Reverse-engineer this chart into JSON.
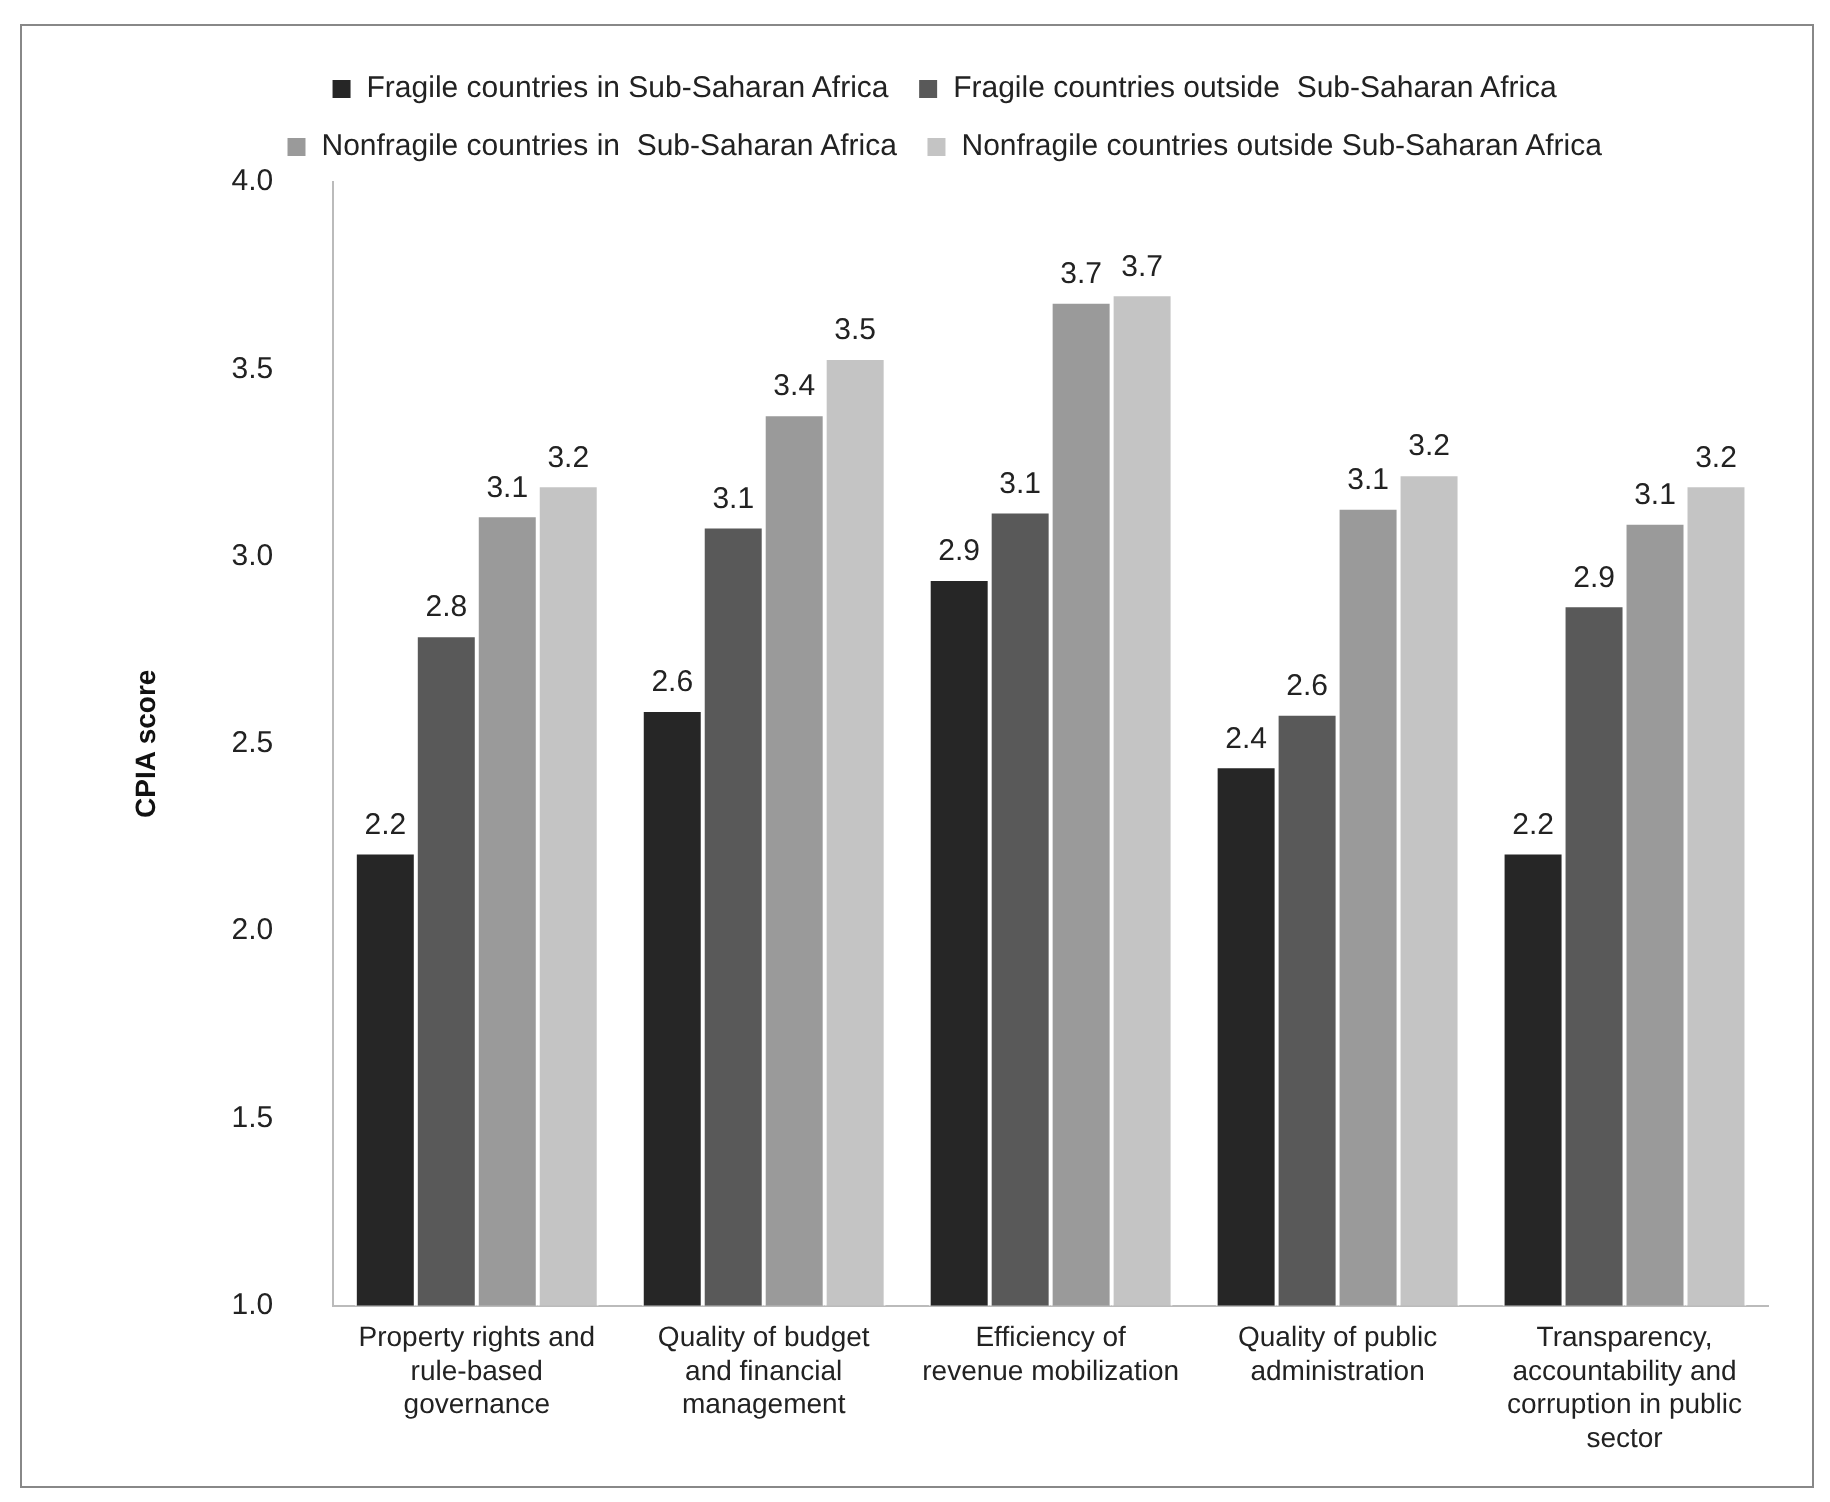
{
  "chart_data": {
    "type": "bar",
    "ylabel": "CPIA score",
    "categories": [
      "Property rights and rule-based governance",
      "Quality of budget and financial management",
      "Efficiency of revenue mobilization",
      "Quality of public administration",
      "Transparency, accountability and corruption in public sector"
    ],
    "series": [
      {
        "name": "Fragile countries in Sub-Saharan Africa",
        "color": "#262626",
        "values": [
          2.21,
          2.59,
          2.94,
          2.44,
          2.21
        ],
        "value_labels": [
          "2.2",
          "2.6",
          "2.9",
          "2.4",
          "2.2"
        ]
      },
      {
        "name": "Fragile countries outside  Sub-Saharan Africa",
        "color": "#595959",
        "values": [
          2.79,
          3.08,
          3.12,
          2.58,
          2.87
        ],
        "value_labels": [
          "2.8",
          "3.1",
          "3.1",
          "2.6",
          "2.9"
        ]
      },
      {
        "name": "Nonfragile countries in  Sub-Saharan Africa",
        "color": "#9a9a9a",
        "values": [
          3.11,
          3.38,
          3.68,
          3.13,
          3.09
        ],
        "value_labels": [
          "3.1",
          "3.4",
          "3.7",
          "3.1",
          "3.1"
        ]
      },
      {
        "name": "Nonfragile countries outside Sub-Saharan Africa",
        "color": "#c4c4c4",
        "values": [
          3.19,
          3.53,
          3.7,
          3.22,
          3.19
        ],
        "value_labels": [
          "3.2",
          "3.5",
          "3.7",
          "3.2",
          "3.2"
        ]
      }
    ],
    "ylim": [
      1.0,
      4.0
    ],
    "yticks": [
      {
        "value": 1,
        "label": "1.0"
      },
      {
        "value": 1.5,
        "label": "1.5"
      },
      {
        "value": 2,
        "label": "2.0"
      },
      {
        "value": 2.5,
        "label": "2.5"
      },
      {
        "value": 3,
        "label": "3.0"
      },
      {
        "value": 3.5,
        "label": "3.5"
      },
      {
        "value": 4,
        "label": "4.0"
      }
    ],
    "grid": false,
    "legend": "top"
  }
}
